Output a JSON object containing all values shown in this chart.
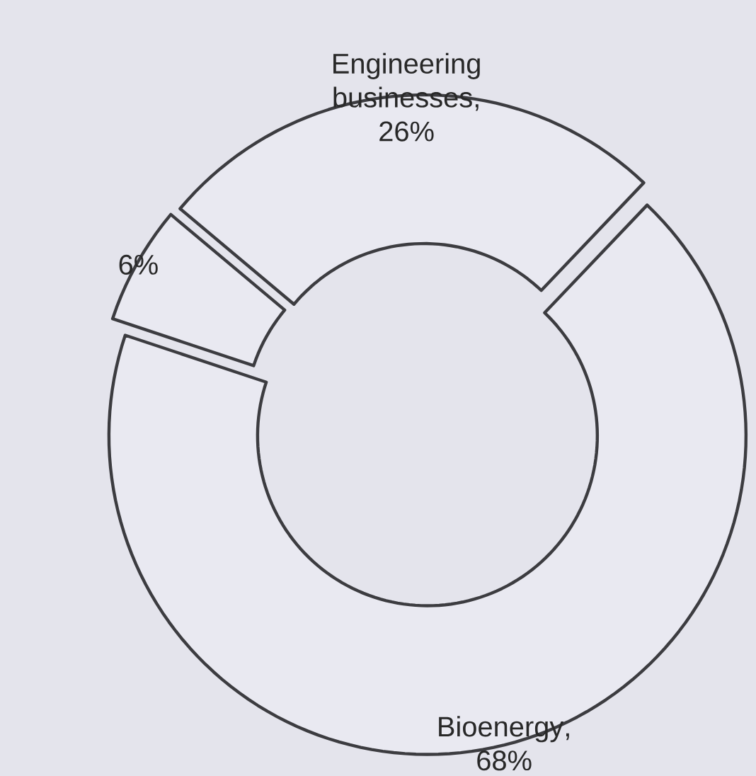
{
  "chart_data": {
    "type": "donut",
    "categories": [
      "Engineering businesses",
      "Bioenergy",
      null
    ],
    "values": [
      26,
      68,
      6
    ],
    "value_labels": [
      ", 26%",
      ", 68%",
      "6%"
    ],
    "colors": [
      "#e9e9f1",
      "#e9e9f1",
      "#e9e9f1"
    ]
  }
}
